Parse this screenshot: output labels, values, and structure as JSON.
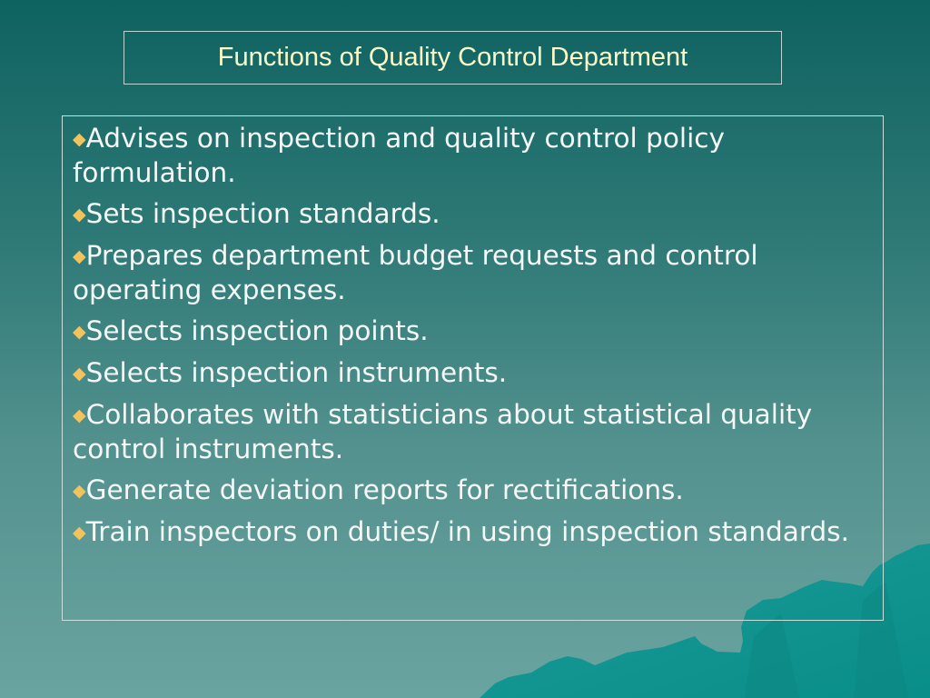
{
  "title": "Functions of Quality Control Department",
  "bullet_icon": "diamond-icon",
  "colors": {
    "bullet": "#f2c35c",
    "title": "#fafac8",
    "text": "#f4f8f6"
  },
  "items": [
    "Advises on inspection and quality control policy formulation.",
    "Sets inspection standards.",
    "Prepares department budget requests and control operating expenses.",
    "Selects inspection points.",
    "Selects inspection instruments.",
    "Collaborates with statisticians about statistical quality control instruments.",
    "Generate deviation reports for rectifications.",
    "Train inspectors on duties/ in using inspection standards."
  ]
}
